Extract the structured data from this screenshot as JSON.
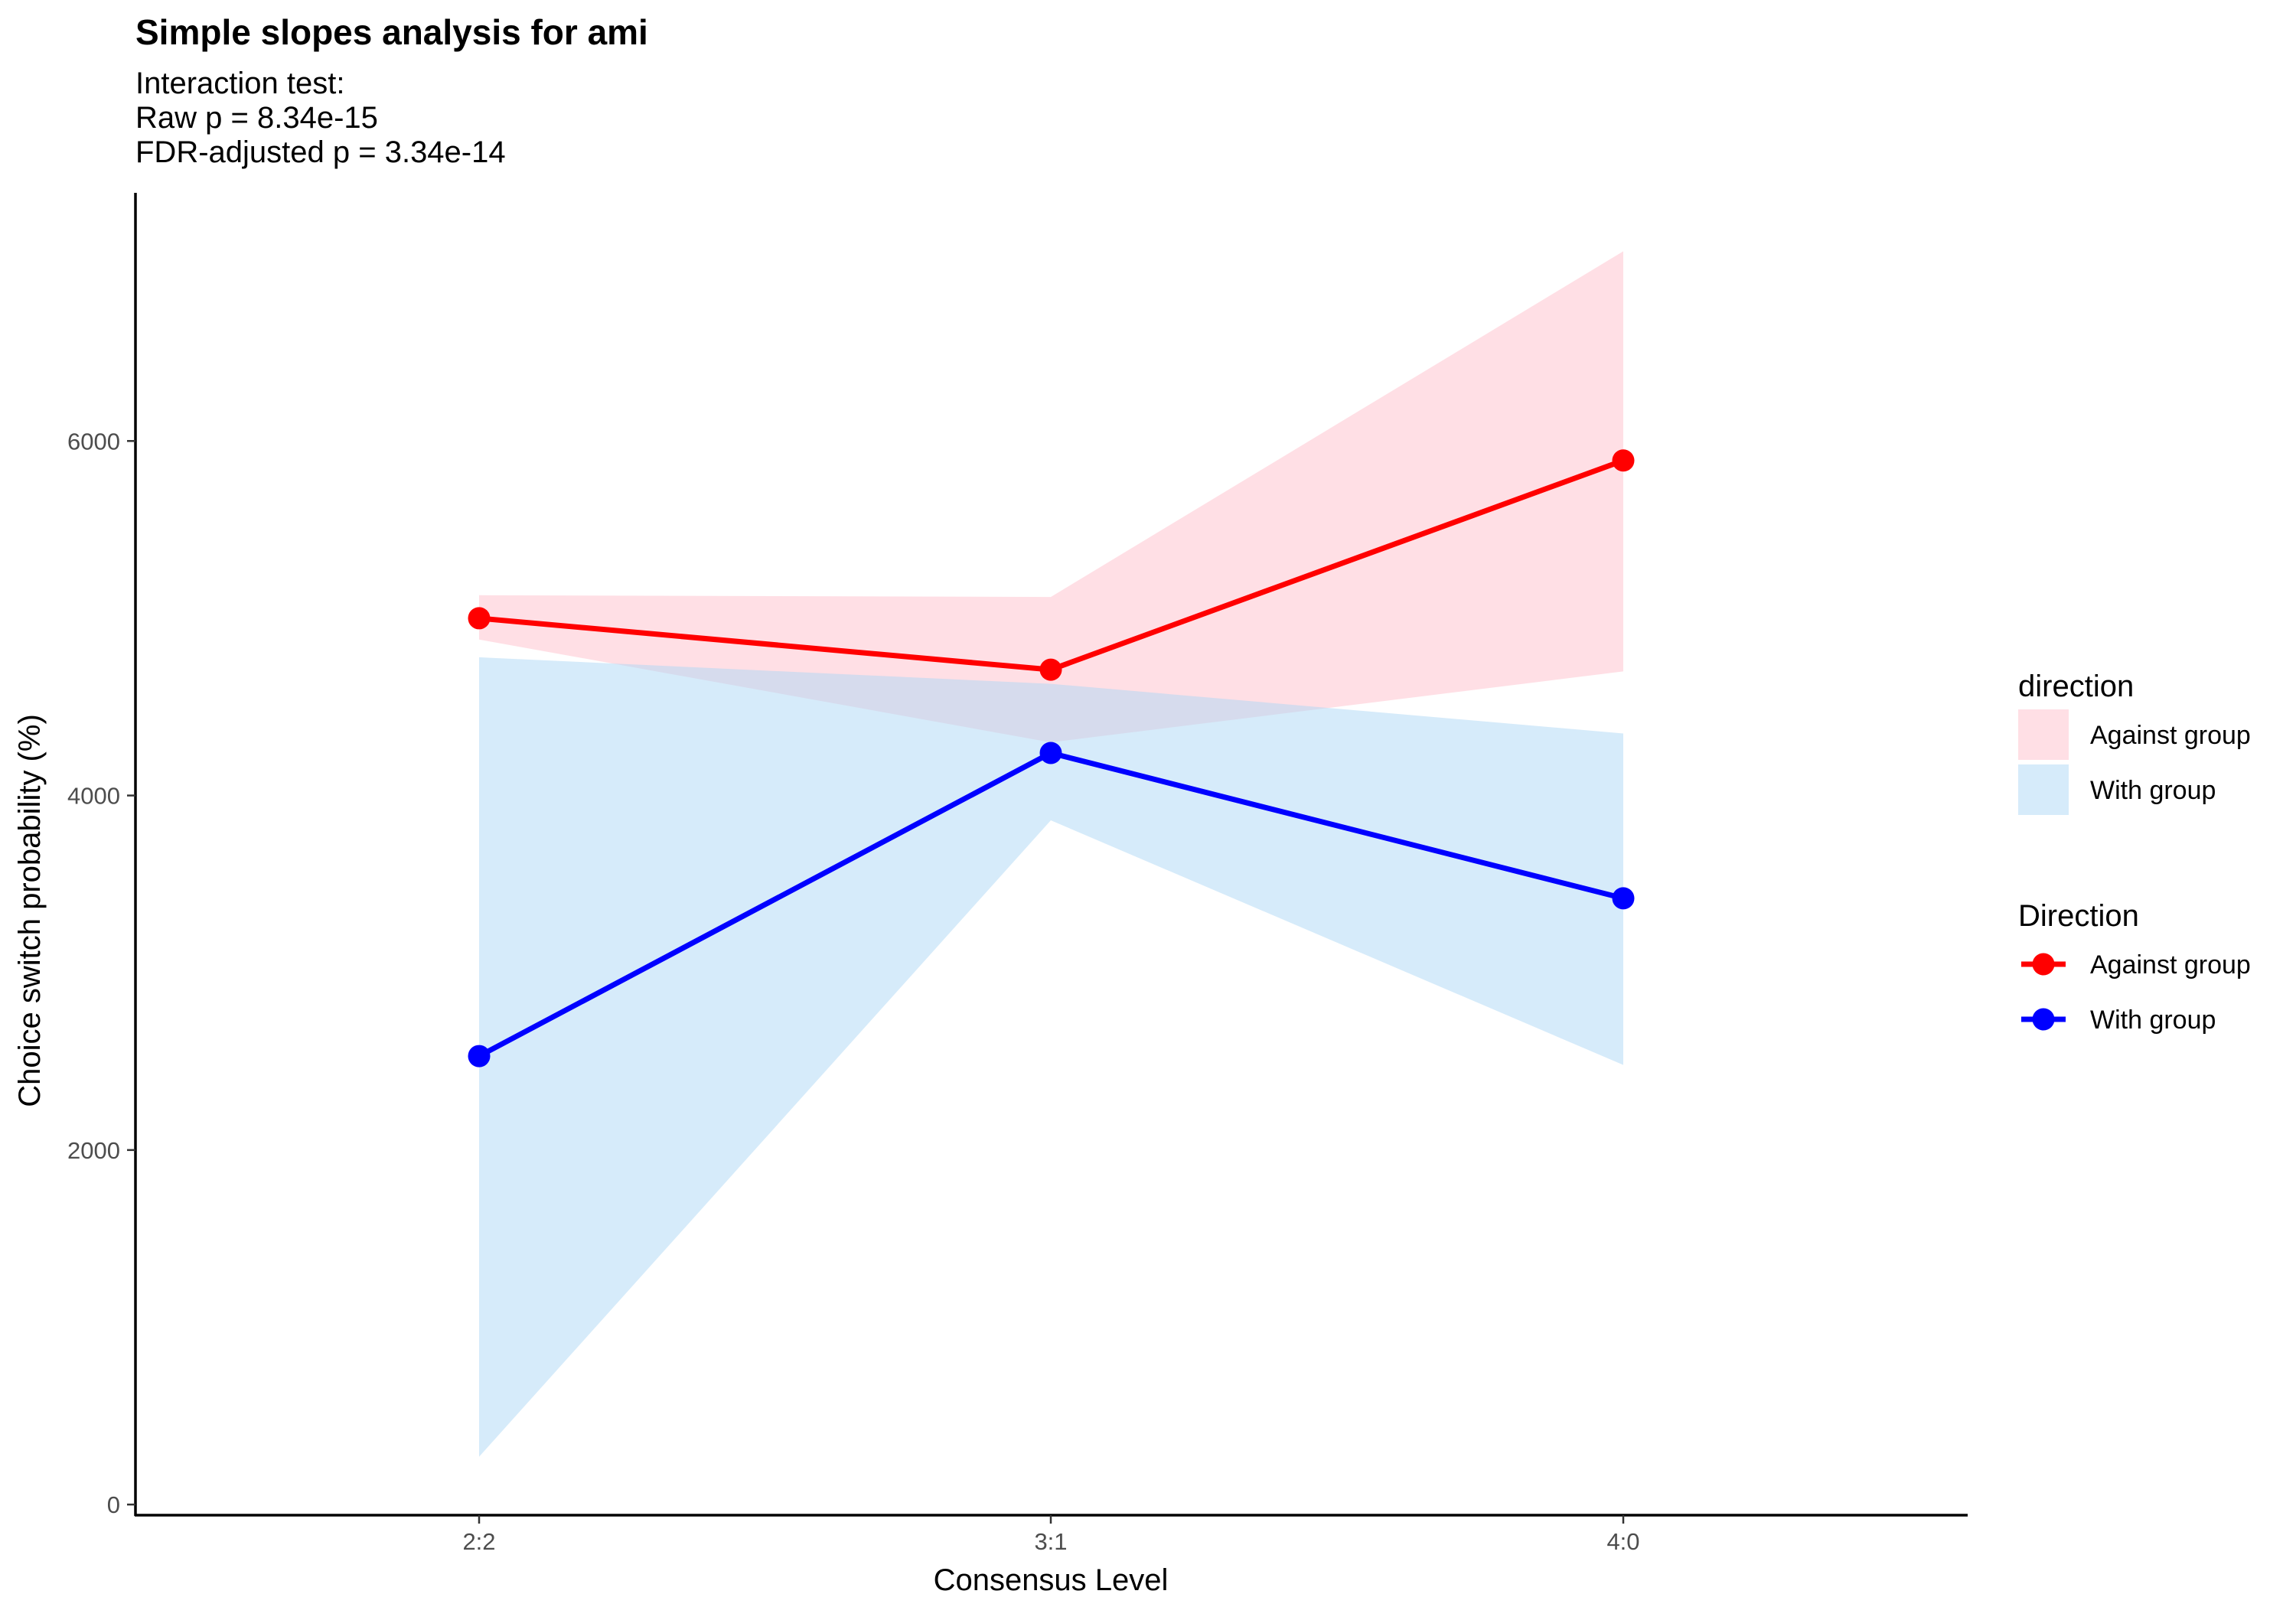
{
  "chart_data": {
    "type": "line",
    "title": "Simple slopes analysis for ami",
    "subtitle_lines": [
      "Interaction test:",
      "Raw p = 8.34e-15",
      "FDR-adjusted p = 3.34e-14"
    ],
    "xlabel": "Consensus Level",
    "ylabel": "Choice switch probability (%)",
    "categories": [
      "2:2",
      "3:1",
      "4:0"
    ],
    "yticks": [
      0,
      2000,
      4000,
      6000
    ],
    "ylim": [
      -60,
      7400
    ],
    "grid": false,
    "legend_position": "right",
    "series": [
      {
        "name": "Against group",
        "color": "#ff0000",
        "ribbon_color": "#ffc0cb",
        "values": [
          5000,
          4710,
          5890
        ],
        "lower": [
          4880,
          4300,
          4700
        ],
        "upper": [
          5130,
          5120,
          7070
        ]
      },
      {
        "name": "With group",
        "color": "#0000ff",
        "ribbon_color": "#add8f5",
        "values": [
          2530,
          4240,
          3420
        ],
        "lower": [
          270,
          3860,
          2480
        ],
        "upper": [
          4780,
          4630,
          4350
        ]
      }
    ],
    "legends": [
      {
        "title": "direction",
        "kind": "fill",
        "entries": [
          "Against group",
          "With group"
        ]
      },
      {
        "title": "Direction",
        "kind": "line",
        "entries": [
          "Against group",
          "With group"
        ]
      }
    ]
  }
}
